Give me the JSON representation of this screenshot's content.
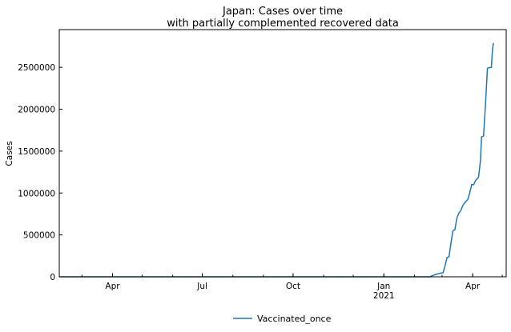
{
  "chart_data": {
    "type": "line",
    "title_line1": "Japan: Cases over time",
    "title_line2": "with partially complemented recovered data",
    "xlabel": "",
    "ylabel": "Cases",
    "x_range": [
      "2020-02-07",
      "2021-05-05"
    ],
    "ylim": [
      0,
      2950000
    ],
    "y_ticks": [
      0,
      500000,
      1000000,
      1500000,
      2000000,
      2500000
    ],
    "y_tick_labels": [
      "0",
      "500000",
      "1000000",
      "1500000",
      "2000000",
      "2500000"
    ],
    "x_ticks": [
      {
        "date": "2020-04-01",
        "label": "Apr",
        "sub": ""
      },
      {
        "date": "2020-07-01",
        "label": "Jul",
        "sub": ""
      },
      {
        "date": "2020-10-01",
        "label": "Oct",
        "sub": ""
      },
      {
        "date": "2021-01-01",
        "label": "Jan",
        "sub": "2021"
      },
      {
        "date": "2021-04-01",
        "label": "Apr",
        "sub": ""
      }
    ],
    "minor_tick_interval": "month",
    "grid": false,
    "legend_position": "bottom-center",
    "series": [
      {
        "name": "Vaccinated_once",
        "color": "#1f77b4",
        "points": [
          [
            "2020-02-07",
            0
          ],
          [
            "2021-02-17",
            0
          ],
          [
            "2021-02-18",
            10000
          ],
          [
            "2021-02-22",
            25000
          ],
          [
            "2021-02-26",
            40000
          ],
          [
            "2021-03-02",
            50000
          ],
          [
            "2021-03-04",
            130000
          ],
          [
            "2021-03-06",
            230000
          ],
          [
            "2021-03-08",
            240000
          ],
          [
            "2021-03-10",
            400000
          ],
          [
            "2021-03-12",
            550000
          ],
          [
            "2021-03-14",
            560000
          ],
          [
            "2021-03-16",
            700000
          ],
          [
            "2021-03-18",
            760000
          ],
          [
            "2021-03-20",
            790000
          ],
          [
            "2021-03-22",
            850000
          ],
          [
            "2021-03-25",
            900000
          ],
          [
            "2021-03-27",
            920000
          ],
          [
            "2021-03-29",
            1000000
          ],
          [
            "2021-03-31",
            1100000
          ],
          [
            "2021-04-02",
            1100000
          ],
          [
            "2021-04-04",
            1150000
          ],
          [
            "2021-04-07",
            1190000
          ],
          [
            "2021-04-09",
            1400000
          ],
          [
            "2021-04-10",
            1670000
          ],
          [
            "2021-04-12",
            1680000
          ],
          [
            "2021-04-14",
            2050000
          ],
          [
            "2021-04-16",
            2490000
          ],
          [
            "2021-04-20",
            2500000
          ],
          [
            "2021-04-21",
            2700000
          ],
          [
            "2021-04-22",
            2790000
          ]
        ]
      }
    ]
  }
}
